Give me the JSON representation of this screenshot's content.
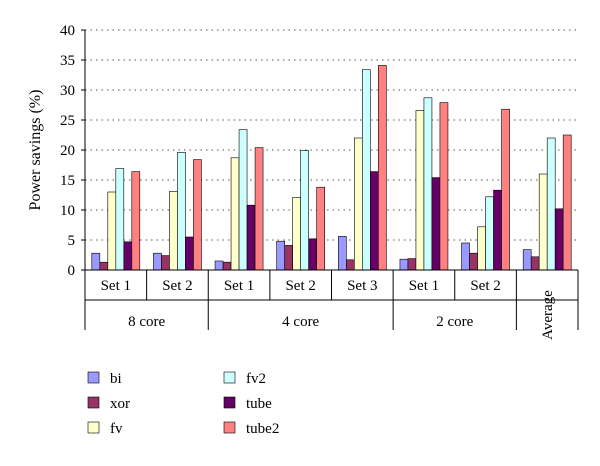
{
  "chart_data": {
    "type": "bar",
    "ylabel": "Power savings (%)",
    "ylim": [
      0,
      40
    ],
    "yticks": [
      0,
      5,
      10,
      15,
      20,
      25,
      30,
      35,
      40
    ],
    "grid": true,
    "legend_position": "bottom",
    "categories": [
      "Set 1",
      "Set 2",
      "Set 1",
      "Set 2",
      "Set 3",
      "Set 1",
      "Set 2",
      "Average"
    ],
    "groups": [
      {
        "label": "8 core",
        "count": 2
      },
      {
        "label": "4 core",
        "count": 3
      },
      {
        "label": "2 core",
        "count": 2
      },
      {
        "label": "",
        "count": 1
      }
    ],
    "series": [
      {
        "name": "bi",
        "color": "#9999ff",
        "values": [
          2.8,
          2.8,
          1.5,
          4.8,
          5.6,
          1.8,
          4.5,
          3.4
        ]
      },
      {
        "name": "xor",
        "color": "#993366",
        "values": [
          1.3,
          2.4,
          1.3,
          4.1,
          1.7,
          1.9,
          2.8,
          2.2
        ]
      },
      {
        "name": "fv",
        "color": "#ffffcc",
        "values": [
          13.0,
          13.1,
          18.7,
          12.1,
          22.0,
          26.6,
          7.2,
          16.0
        ]
      },
      {
        "name": "fv2",
        "color": "#ccffff",
        "values": [
          16.9,
          19.6,
          23.4,
          19.9,
          33.4,
          28.7,
          12.2,
          22.0
        ]
      },
      {
        "name": "tube",
        "color": "#660066",
        "values": [
          4.7,
          5.5,
          10.8,
          5.2,
          16.4,
          15.4,
          13.3,
          10.2
        ]
      },
      {
        "name": "tube2",
        "color": "#ff8080",
        "values": [
          16.4,
          18.4,
          20.4,
          13.8,
          34.1,
          27.9,
          26.8,
          22.5
        ]
      }
    ]
  }
}
